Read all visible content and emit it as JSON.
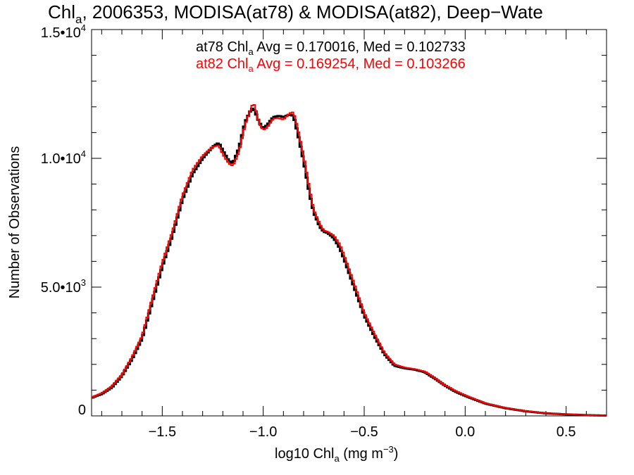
{
  "chart_data": {
    "type": "line",
    "title": {
      "prefix": "Chl",
      "sub": "a",
      "rest": ", 2006353, MODISA(at78) & MODISA(at82), Deep−Wate"
    },
    "xlabel": {
      "prefix": "log10 Chl",
      "sub": "a",
      "mid": " (mg m",
      "sup": "−3",
      "end": ")"
    },
    "ylabel": "Number of Observations",
    "xlim": [
      -1.85,
      0.7
    ],
    "ylim": [
      0,
      15000
    ],
    "x_ticks": [
      {
        "value": -1.5,
        "label": "−1.5"
      },
      {
        "value": -1.0,
        "label": "−1.0"
      },
      {
        "value": -0.5,
        "label": "−0.5"
      },
      {
        "value": 0.0,
        "label": "0.0"
      },
      {
        "value": 0.5,
        "label": "0.5"
      }
    ],
    "y_ticks": [
      {
        "value": 0,
        "mant": "0",
        "exp": ""
      },
      {
        "value": 5000,
        "mant": "5.0•10",
        "exp": "3"
      },
      {
        "value": 10000,
        "mant": "1.0•10",
        "exp": "4"
      },
      {
        "value": 15000,
        "mant": "1.5•10",
        "exp": "4"
      }
    ],
    "x_minor_step": 0.1,
    "y_minor_step": 1000,
    "step_width": 0.01,
    "annotations": [
      {
        "prefix": "at78 Chl",
        "sub": "a",
        "rest": " Avg = 0.170016, Med = 0.102733",
        "color": "#000000"
      },
      {
        "prefix": "at82 Chl",
        "sub": "a",
        "rest": " Avg = 0.169254, Med = 0.103266",
        "color": "#ff0000"
      }
    ],
    "series": [
      {
        "name": "at78",
        "color": "#000000",
        "x": [
          -1.85,
          -1.8,
          -1.75,
          -1.7,
          -1.65,
          -1.6,
          -1.55,
          -1.5,
          -1.45,
          -1.4,
          -1.35,
          -1.3,
          -1.25,
          -1.22,
          -1.2,
          -1.17,
          -1.15,
          -1.12,
          -1.09,
          -1.06,
          -1.05,
          -1.04,
          -1.02,
          -1.0,
          -0.98,
          -0.95,
          -0.92,
          -0.9,
          -0.87,
          -0.85,
          -0.83,
          -0.8,
          -0.77,
          -0.75,
          -0.72,
          -0.7,
          -0.68,
          -0.65,
          -0.62,
          -0.6,
          -0.55,
          -0.5,
          -0.45,
          -0.4,
          -0.35,
          -0.3,
          -0.25,
          -0.2,
          -0.15,
          -0.1,
          -0.05,
          0.0,
          0.1,
          0.2,
          0.3,
          0.4,
          0.5,
          0.6,
          0.7
        ],
        "y": [
          700,
          850,
          1100,
          1550,
          2200,
          3000,
          4400,
          5800,
          7000,
          8400,
          9400,
          10000,
          10450,
          10600,
          10300,
          9900,
          9800,
          10400,
          11400,
          11900,
          11950,
          11800,
          11400,
          11150,
          11300,
          11600,
          11650,
          11600,
          11700,
          11650,
          11000,
          9900,
          8600,
          7900,
          7350,
          7150,
          7100,
          6900,
          6500,
          6100,
          5000,
          3900,
          3100,
          2400,
          1950,
          1850,
          1800,
          1700,
          1450,
          1180,
          950,
          780,
          480,
          300,
          180,
          100,
          60,
          30,
          10
        ]
      },
      {
        "name": "at82",
        "color": "#ff0000",
        "x": [
          -1.85,
          -1.8,
          -1.75,
          -1.7,
          -1.65,
          -1.6,
          -1.55,
          -1.5,
          -1.45,
          -1.4,
          -1.35,
          -1.3,
          -1.25,
          -1.22,
          -1.2,
          -1.17,
          -1.15,
          -1.12,
          -1.09,
          -1.06,
          -1.05,
          -1.04,
          -1.02,
          -1.0,
          -0.98,
          -0.95,
          -0.92,
          -0.9,
          -0.87,
          -0.85,
          -0.83,
          -0.8,
          -0.77,
          -0.75,
          -0.72,
          -0.7,
          -0.68,
          -0.65,
          -0.62,
          -0.6,
          -0.55,
          -0.5,
          -0.45,
          -0.4,
          -0.35,
          -0.3,
          -0.25,
          -0.2,
          -0.15,
          -0.1,
          -0.05,
          0.0,
          0.1,
          0.2,
          0.3,
          0.4,
          0.5,
          0.6,
          0.7
        ],
        "y": [
          720,
          880,
          1150,
          1600,
          2280,
          3100,
          4550,
          5950,
          7150,
          8550,
          9550,
          10100,
          10450,
          10500,
          10150,
          9800,
          9700,
          10250,
          11300,
          11950,
          12150,
          12000,
          11350,
          11100,
          11200,
          11550,
          11550,
          11500,
          11750,
          11800,
          11200,
          10100,
          8800,
          8000,
          7450,
          7200,
          7150,
          7000,
          6650,
          6250,
          5150,
          4000,
          3200,
          2450,
          2000,
          1880,
          1820,
          1720,
          1480,
          1200,
          980,
          800,
          490,
          310,
          185,
          105,
          65,
          32,
          12
        ]
      }
    ]
  }
}
